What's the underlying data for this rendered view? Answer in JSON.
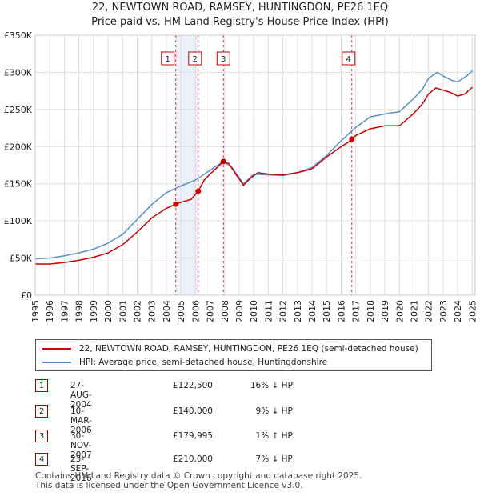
{
  "header": {
    "title": "22, NEWTOWN ROAD, RAMSEY, HUNTINGDON, PE26 1EQ",
    "subtitle": "Price paid vs. HM Land Registry's House Price Index (HPI)"
  },
  "chart_data": {
    "type": "line",
    "title": "22, NEWTOWN ROAD, RAMSEY, HUNTINGDON, PE26 1EQ",
    "subtitle": "Price paid vs. HM Land Registry's House Price Index (HPI)",
    "xlabel": "",
    "ylabel": "",
    "xlim": [
      1995,
      2025.2
    ],
    "ylim": [
      0,
      350000
    ],
    "x_ticks": [
      "1995",
      "1996",
      "1997",
      "1998",
      "1999",
      "2000",
      "2001",
      "2002",
      "2003",
      "2004",
      "2005",
      "2006",
      "2007",
      "2008",
      "2009",
      "2010",
      "2011",
      "2012",
      "2013",
      "2014",
      "2015",
      "2016",
      "2017",
      "2018",
      "2019",
      "2020",
      "2021",
      "2022",
      "2023",
      "2024",
      "2025"
    ],
    "y_ticks": [
      {
        "value": 0,
        "label": "£0"
      },
      {
        "value": 50000,
        "label": "£50K"
      },
      {
        "value": 100000,
        "label": "£100K"
      },
      {
        "value": 150000,
        "label": "£150K"
      },
      {
        "value": 200000,
        "label": "£200K"
      },
      {
        "value": 250000,
        "label": "£250K"
      },
      {
        "value": 300000,
        "label": "£300K"
      },
      {
        "value": 350000,
        "label": "£350K"
      }
    ],
    "grid": true,
    "legend_position": "below",
    "series": [
      {
        "name": "22, NEWTOWN ROAD, RAMSEY, HUNTINGDON, PE26 1EQ (semi-detached house)",
        "color": "#cc0000",
        "points": [
          [
            1995,
            42000
          ],
          [
            1996,
            42000
          ],
          [
            1997,
            44000
          ],
          [
            1998,
            47000
          ],
          [
            1999,
            51000
          ],
          [
            2000,
            57000
          ],
          [
            2001,
            68000
          ],
          [
            2002,
            85000
          ],
          [
            2003,
            104000
          ],
          [
            2004,
            117000
          ],
          [
            2004.65,
            122500
          ],
          [
            2005,
            125000
          ],
          [
            2005.7,
            129000
          ],
          [
            2006.19,
            140000
          ],
          [
            2006.6,
            155000
          ],
          [
            2007,
            163000
          ],
          [
            2007.5,
            172000
          ],
          [
            2007.92,
            179995
          ],
          [
            2008.3,
            177000
          ],
          [
            2008.8,
            162000
          ],
          [
            2009.3,
            148000
          ],
          [
            2009.8,
            158000
          ],
          [
            2010.3,
            165000
          ],
          [
            2011,
            163000
          ],
          [
            2012,
            162000
          ],
          [
            2013,
            165000
          ],
          [
            2014,
            170000
          ],
          [
            2015,
            186000
          ],
          [
            2016,
            200000
          ],
          [
            2016.5,
            206000
          ],
          [
            2016.73,
            210000
          ],
          [
            2017,
            215000
          ],
          [
            2018,
            224000
          ],
          [
            2019,
            228000
          ],
          [
            2020,
            228000
          ],
          [
            2021,
            245000
          ],
          [
            2021.6,
            258000
          ],
          [
            2022,
            271000
          ],
          [
            2022.5,
            279000
          ],
          [
            2023,
            276000
          ],
          [
            2023.5,
            273000
          ],
          [
            2024,
            268000
          ],
          [
            2024.5,
            271000
          ],
          [
            2025,
            280000
          ]
        ]
      },
      {
        "name": "HPI: Average price, semi-detached house, Huntingdonshire",
        "color": "#5b8fcc",
        "points": [
          [
            1995,
            49000
          ],
          [
            1996,
            50000
          ],
          [
            1997,
            53000
          ],
          [
            1998,
            57000
          ],
          [
            1999,
            62000
          ],
          [
            2000,
            70000
          ],
          [
            2001,
            82000
          ],
          [
            2002,
            102000
          ],
          [
            2003,
            122000
          ],
          [
            2004,
            138000
          ],
          [
            2005,
            147000
          ],
          [
            2006,
            155000
          ],
          [
            2007,
            168000
          ],
          [
            2007.9,
            180000
          ],
          [
            2008.5,
            172000
          ],
          [
            2009.3,
            150000
          ],
          [
            2010,
            163000
          ],
          [
            2011,
            162000
          ],
          [
            2012,
            161000
          ],
          [
            2013,
            165000
          ],
          [
            2014,
            172000
          ],
          [
            2015,
            188000
          ],
          [
            2016,
            208000
          ],
          [
            2017,
            226000
          ],
          [
            2018,
            240000
          ],
          [
            2019,
            244000
          ],
          [
            2020,
            247000
          ],
          [
            2021,
            265000
          ],
          [
            2021.6,
            278000
          ],
          [
            2022,
            292000
          ],
          [
            2022.6,
            300000
          ],
          [
            2023,
            295000
          ],
          [
            2023.6,
            289000
          ],
          [
            2024,
            287000
          ],
          [
            2024.6,
            295000
          ],
          [
            2025,
            302000
          ]
        ]
      }
    ],
    "sales": [
      {
        "num": "1",
        "x": 2004.65,
        "price": 122500
      },
      {
        "num": "2",
        "x": 2006.19,
        "price": 140000
      },
      {
        "num": "3",
        "x": 2007.92,
        "price": 179995
      },
      {
        "num": "4",
        "x": 2016.73,
        "price": 210000
      }
    ],
    "shaded_spans": [
      [
        2004.65,
        2006.19
      ],
      [
        2007.92,
        2007.92
      ]
    ]
  },
  "legend": {
    "entries": [
      {
        "label": "22, NEWTOWN ROAD, RAMSEY, HUNTINGDON, PE26 1EQ (semi-detached house)",
        "color": "#cc0000"
      },
      {
        "label": "HPI: Average price, semi-detached house, Huntingdonshire",
        "color": "#5b8fcc"
      }
    ]
  },
  "transactions": [
    {
      "num": "1",
      "date": "27-AUG-2004",
      "price": "£122,500",
      "hpi": "16% ↓ HPI"
    },
    {
      "num": "2",
      "date": "10-MAR-2006",
      "price": "£140,000",
      "hpi": "9% ↓ HPI"
    },
    {
      "num": "3",
      "date": "30-NOV-2007",
      "price": "£179,995",
      "hpi": "1% ↑ HPI"
    },
    {
      "num": "4",
      "date": "23-SEP-2016",
      "price": "£210,000",
      "hpi": "7% ↓ HPI"
    }
  ],
  "footer": {
    "line1": "Contains HM Land Registry data © Crown copyright and database right 2025.",
    "line2": "This data is licensed under the Open Government Licence v3.0."
  }
}
